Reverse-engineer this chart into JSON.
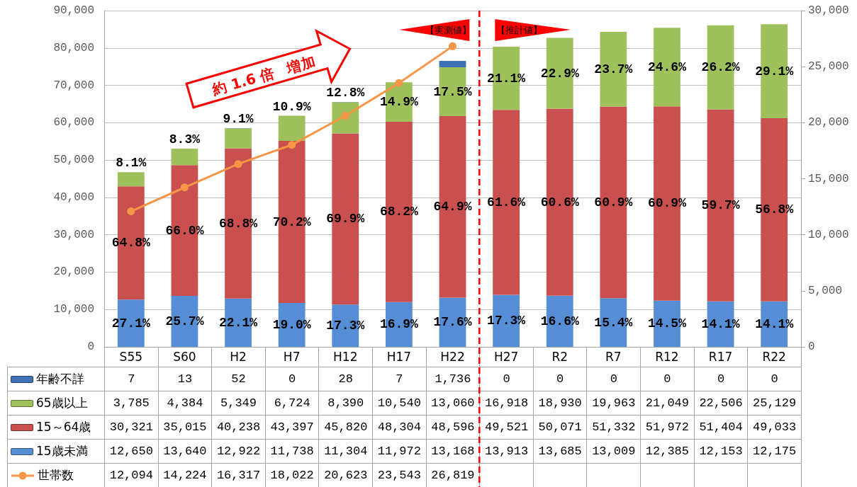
{
  "chart_data": {
    "type": "bar",
    "stacked": true,
    "categories": [
      "S55",
      "S60",
      "H2",
      "H7",
      "H12",
      "H17",
      "H22",
      "H27",
      "R2",
      "R7",
      "R12",
      "R17",
      "R22"
    ],
    "series": [
      {
        "name": "15歳未満",
        "color": "#558ed5",
        "values": [
          12650,
          13640,
          12922,
          11738,
          11304,
          11972,
          13168,
          13913,
          13685,
          13009,
          12385,
          12153,
          12175
        ],
        "value_labels": [
          "12,650",
          "13,640",
          "12,922",
          "11,738",
          "11,304",
          "11,972",
          "13,168",
          "13,913",
          "13,685",
          "13,009",
          "12,385",
          "12,153",
          "12,175"
        ]
      },
      {
        "name": "15～64歳",
        "color": "#c9504e",
        "values": [
          30321,
          35015,
          40238,
          43397,
          45820,
          48304,
          48596,
          49521,
          50071,
          51332,
          51972,
          51404,
          49033
        ],
        "value_labels": [
          "30,321",
          "35,015",
          "40,238",
          "43,397",
          "45,820",
          "48,304",
          "48,596",
          "49,521",
          "50,071",
          "51,332",
          "51,972",
          "51,404",
          "49,033"
        ]
      },
      {
        "name": "65歳以上",
        "color": "#9fc15c",
        "values": [
          3785,
          4384,
          5349,
          6724,
          8390,
          10540,
          13060,
          16918,
          18930,
          19963,
          21049,
          22506,
          25129
        ],
        "value_labels": [
          "3,785",
          "4,384",
          "5,349",
          "6,724",
          "8,390",
          "10,540",
          "13,060",
          "16,918",
          "18,930",
          "19,963",
          "21,049",
          "22,506",
          "25,129"
        ]
      },
      {
        "name": "年齢不詳",
        "color": "#3f72b5",
        "values": [
          7,
          13,
          52,
          0,
          28,
          7,
          1736,
          0,
          0,
          0,
          0,
          0,
          0
        ],
        "value_labels": [
          "7",
          "13",
          "52",
          "0",
          "28",
          "7",
          "1,736",
          "0",
          "0",
          "0",
          "0",
          "0",
          "0"
        ]
      },
      {
        "name": "世帯数",
        "type": "line",
        "axis": "y2",
        "color": "#f79646",
        "values": [
          12094,
          14224,
          16317,
          18022,
          20623,
          23543,
          26819,
          null,
          null,
          null,
          null,
          null,
          null
        ],
        "value_labels": [
          "12,094",
          "14,224",
          "16,317",
          "18,022",
          "20,623",
          "23,543",
          "26,819",
          null,
          null,
          null,
          null,
          null,
          null
        ]
      }
    ],
    "ylim": [
      0,
      90000
    ],
    "yticks": [
      0,
      {
        "value": 10000,
        "label": "10,000"
      },
      {
        "value": 20000,
        "label": "20,000"
      },
      {
        "value": 30000,
        "label": "30,000"
      },
      {
        "value": 40000,
        "label": "40,000"
      },
      {
        "value": 50000,
        "label": "50,000"
      },
      {
        "value": 60000,
        "label": "60,000"
      },
      {
        "value": 70000,
        "label": "70,000"
      },
      {
        "value": 80000,
        "label": "80,000"
      },
      {
        "value": 90000,
        "label": "90,000"
      }
    ],
    "y2lim": [
      0,
      30000
    ],
    "y2ticks": [
      0,
      {
        "value": 5000,
        "label": "5,000"
      },
      {
        "value": 10000,
        "label": "10,000"
      },
      {
        "value": 15000,
        "label": "15,000"
      },
      {
        "value": 20000,
        "label": "20,000"
      },
      {
        "value": 25000,
        "label": "25,000"
      },
      {
        "value": 30000,
        "label": "30,000"
      }
    ],
    "grid": "y",
    "legend": "bottom left",
    "marker": "circle",
    "line_style": "solid",
    "ref_lines": [
      {
        "axis": "x",
        "value": "H27",
        "color": "#ff0000",
        "line_style": "dashed"
      }
    ],
    "annotations": [
      "約 1.6 倍　増加",
      "【実測値】",
      "【推計値】",
      "27.1%",
      "25.7%",
      "22.1%",
      "19.0%",
      "17.3%",
      "16.9%",
      "17.6%",
      "17.3%",
      "16.6%",
      "15.4%",
      "14.5%",
      "14.1%",
      "14.1%",
      "64.8%",
      "66.0%",
      "68.8%",
      "70.2%",
      "69.9%",
      "68.2%",
      "64.9%",
      "61.6%",
      "60.6%",
      "60.9%",
      "60.9%",
      "59.7%",
      "56.8%",
      "8.1%",
      "8.3%",
      "9.1%",
      "10.9%",
      "12.8%",
      "14.9%",
      "17.5%",
      "21.1%",
      "22.9%",
      "23.7%",
      "24.6%",
      "26.2%",
      "29.1%"
    ]
  }
}
